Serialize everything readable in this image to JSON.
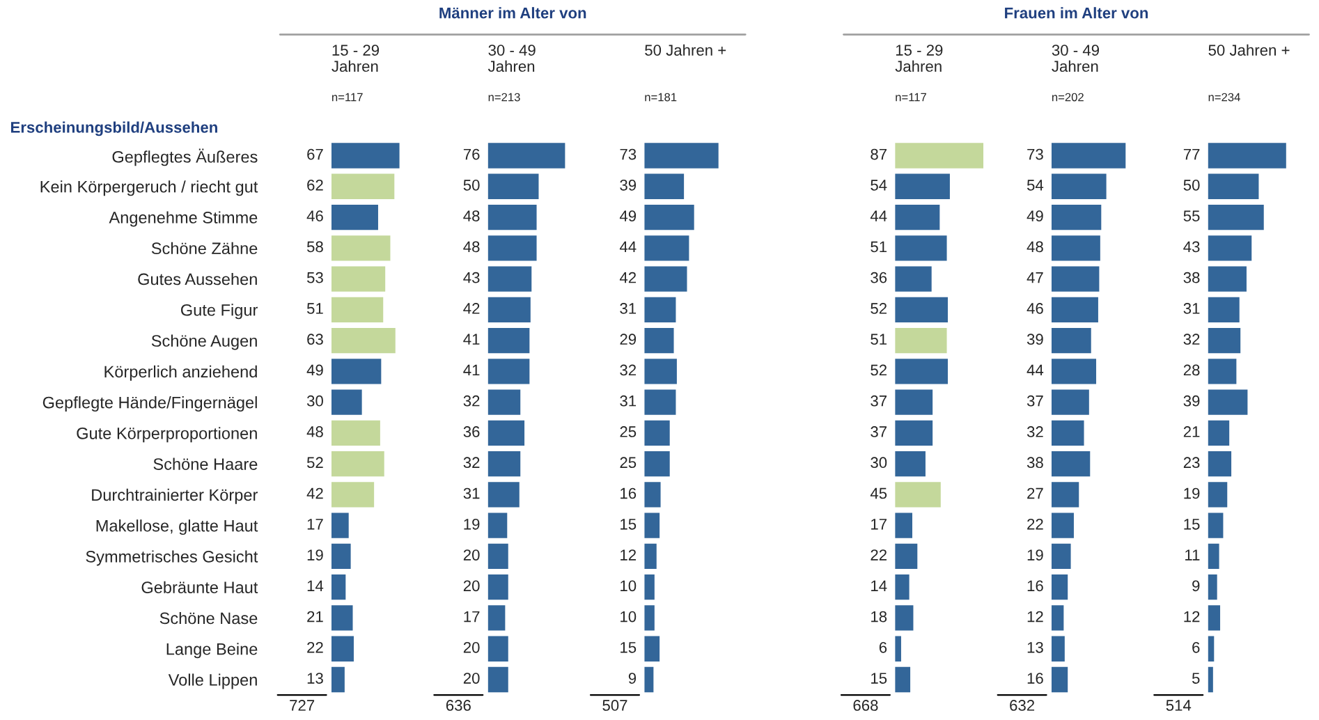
{
  "chart_data": [
    {
      "type": "bar",
      "orientation": "horizontal",
      "title": "15 - 29\nJahren",
      "subtitle": "n=117",
      "ylabel": "Erscheinungsbild/Aussehen",
      "annotations": [
        "Männer im Alter von",
        "727"
      ],
      "tick_labels": "y",
      "data_labels": true,
      "grid": false,
      "categories": [
        "Gepflegtes Äußeres",
        "Kein Körpergeruch / riecht gut",
        "Angenehme Stimme",
        "Schöne Zähne",
        "Gutes Aussehen",
        "Gute Figur",
        "Schöne Augen",
        "Körperlich anziehend",
        "Gepflegte Hände/Fingernägel",
        "Gute Körperproportionen",
        "Schöne Haare",
        "Durchtrainierter Körper",
        "Makellose, glatte Haut",
        "Symmetrisches Gesicht",
        "Gebräunte Haut",
        "Schöne Nase",
        "Lange Beine",
        "Volle Lippen"
      ],
      "values": [
        67,
        62,
        46,
        58,
        53,
        51,
        63,
        49,
        30,
        48,
        52,
        42,
        17,
        19,
        14,
        21,
        22,
        13
      ],
      "colors": [
        "#336699",
        "#c4d89b",
        "#336699",
        "#c4d89b",
        "#c4d89b",
        "#c4d89b",
        "#c4d89b",
        "#336699",
        "#336699",
        "#c4d89b",
        "#c4d89b",
        "#c4d89b",
        "#336699",
        "#336699",
        "#336699",
        "#336699",
        "#336699",
        "#336699"
      ]
    },
    {
      "type": "bar",
      "orientation": "horizontal",
      "title": "30 - 49\nJahren",
      "subtitle": "n=213",
      "annotations": [
        "636"
      ],
      "tick_labels": false,
      "data_labels": true,
      "grid": false,
      "categories": [
        null,
        null,
        null,
        null,
        null,
        null,
        null,
        null,
        null,
        null,
        null,
        null,
        null,
        null,
        null,
        null,
        null,
        null
      ],
      "values": [
        76,
        50,
        48,
        48,
        43,
        42,
        41,
        41,
        32,
        36,
        32,
        31,
        19,
        20,
        20,
        17,
        20,
        20
      ],
      "colors": [
        "#336699",
        "#336699",
        "#336699",
        "#336699",
        "#336699",
        "#336699",
        "#336699",
        "#336699",
        "#336699",
        "#336699",
        "#336699",
        "#336699",
        "#336699",
        "#336699",
        "#336699",
        "#336699",
        "#336699",
        "#336699"
      ]
    },
    {
      "type": "bar",
      "orientation": "horizontal",
      "title": "50 Jahren +",
      "subtitle": "n=181",
      "annotations": [
        "507"
      ],
      "tick_labels": false,
      "data_labels": true,
      "grid": false,
      "categories": [
        null,
        null,
        null,
        null,
        null,
        null,
        null,
        null,
        null,
        null,
        null,
        null,
        null,
        null,
        null,
        null,
        null,
        null
      ],
      "values": [
        73,
        39,
        49,
        44,
        42,
        31,
        29,
        32,
        31,
        25,
        25,
        16,
        15,
        12,
        10,
        10,
        15,
        9
      ],
      "colors": [
        "#336699",
        "#336699",
        "#336699",
        "#336699",
        "#336699",
        "#336699",
        "#336699",
        "#336699",
        "#336699",
        "#336699",
        "#336699",
        "#336699",
        "#336699",
        "#336699",
        "#336699",
        "#336699",
        "#336699",
        "#336699"
      ]
    },
    {
      "type": "bar",
      "orientation": "horizontal",
      "title": "15 - 29\nJahren",
      "subtitle": "n=117",
      "annotations": [
        "Frauen im Alter von",
        "668"
      ],
      "tick_labels": false,
      "data_labels": true,
      "grid": false,
      "categories": [
        null,
        null,
        null,
        null,
        null,
        null,
        null,
        null,
        null,
        null,
        null,
        null,
        null,
        null,
        null,
        null,
        null,
        null
      ],
      "values": [
        87,
        54,
        44,
        51,
        36,
        52,
        51,
        52,
        37,
        37,
        30,
        45,
        17,
        22,
        14,
        18,
        6,
        15
      ],
      "colors": [
        "#c4d89b",
        "#336699",
        "#336699",
        "#336699",
        "#336699",
        "#336699",
        "#c4d89b",
        "#336699",
        "#336699",
        "#336699",
        "#336699",
        "#c4d89b",
        "#336699",
        "#336699",
        "#336699",
        "#336699",
        "#336699",
        "#336699"
      ]
    },
    {
      "type": "bar",
      "orientation": "horizontal",
      "title": "30 - 49\nJahren",
      "subtitle": "n=202",
      "annotations": [
        "632"
      ],
      "tick_labels": false,
      "data_labels": true,
      "grid": false,
      "categories": [
        null,
        null,
        null,
        null,
        null,
        null,
        null,
        null,
        null,
        null,
        null,
        null,
        null,
        null,
        null,
        null,
        null,
        null
      ],
      "values": [
        73,
        54,
        49,
        48,
        47,
        46,
        39,
        44,
        37,
        32,
        38,
        27,
        22,
        19,
        16,
        12,
        13,
        16
      ],
      "colors": [
        "#336699",
        "#336699",
        "#336699",
        "#336699",
        "#336699",
        "#336699",
        "#336699",
        "#336699",
        "#336699",
        "#336699",
        "#336699",
        "#336699",
        "#336699",
        "#336699",
        "#336699",
        "#336699",
        "#336699",
        "#336699"
      ]
    },
    {
      "type": "bar",
      "orientation": "horizontal",
      "title": "50 Jahren +",
      "subtitle": "n=234",
      "annotations": [
        "514"
      ],
      "tick_labels": false,
      "data_labels": true,
      "grid": false,
      "categories": [
        null,
        null,
        null,
        null,
        null,
        null,
        null,
        null,
        null,
        null,
        null,
        null,
        null,
        null,
        null,
        null,
        null,
        null
      ],
      "values": [
        77,
        50,
        55,
        43,
        38,
        31,
        32,
        28,
        39,
        21,
        23,
        19,
        15,
        11,
        9,
        12,
        6,
        5
      ],
      "colors": [
        "#336699",
        "#336699",
        "#336699",
        "#336699",
        "#336699",
        "#336699",
        "#336699",
        "#336699",
        "#336699",
        "#336699",
        "#336699",
        "#336699",
        "#336699",
        "#336699",
        "#336699",
        "#336699",
        "#336699",
        "#336699"
      ]
    }
  ]
}
